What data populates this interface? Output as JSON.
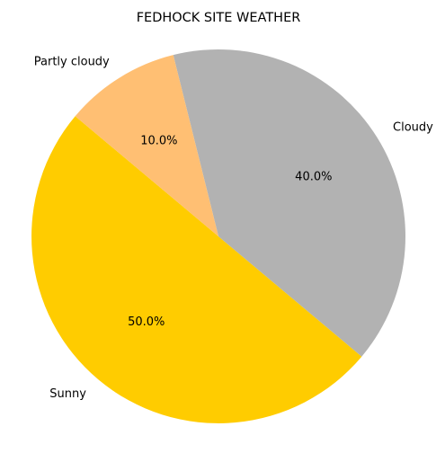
{
  "chart_data": {
    "type": "pie",
    "title": "FEDHOCK SITE WEATHER",
    "slices": [
      {
        "label": "Sunny",
        "value": 50.0,
        "pct_label": "50.0%",
        "color": "#ffcc00"
      },
      {
        "label": "Cloudy",
        "value": 40.0,
        "pct_label": "40.0%",
        "color": "#b2b2b2"
      },
      {
        "label": "Partly cloudy",
        "value": 10.0,
        "pct_label": "10.0%",
        "color": "#ffbf73"
      }
    ],
    "start_angle_deg": 140,
    "direction": "counterclockwise"
  }
}
